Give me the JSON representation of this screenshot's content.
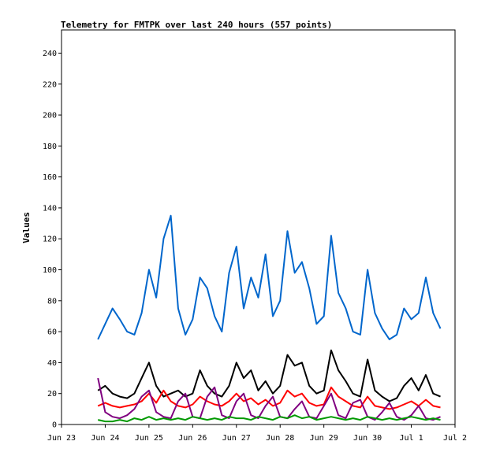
{
  "chart_data": {
    "type": "line",
    "title": "Telemetry for FMTPK over last 240 hours (557 points)",
    "xlabel": "",
    "ylabel": "Values",
    "xlim": [
      "2023-06-23",
      "2023-07-02"
    ],
    "ylim": [
      0,
      255
    ],
    "grid": false,
    "x_ticks": [
      {
        "date": "2023-06-23",
        "label": "Jun 23"
      },
      {
        "date": "2023-06-24",
        "label": "Jun 24"
      },
      {
        "date": "2023-06-25",
        "label": "Jun 25"
      },
      {
        "date": "2023-06-26",
        "label": "Jun 26"
      },
      {
        "date": "2023-06-27",
        "label": "Jun 27"
      },
      {
        "date": "2023-06-28",
        "label": "Jun 28"
      },
      {
        "date": "2023-06-29",
        "label": "Jun 29"
      },
      {
        "date": "2023-06-30",
        "label": "Jun 30"
      },
      {
        "date": "2023-07-01",
        "label": "Jul 1"
      },
      {
        "date": "2023-07-02",
        "label": "Jul 2"
      }
    ],
    "y_ticks": [
      0,
      20,
      40,
      60,
      80,
      100,
      120,
      140,
      160,
      180,
      200,
      220,
      240
    ],
    "series": [
      {
        "color": "#0066cc",
        "x": [
          "2023-06-23T20:00",
          "2023-06-24T00:00",
          "2023-06-24T04:00",
          "2023-06-24T08:00",
          "2023-06-24T12:00",
          "2023-06-24T16:00",
          "2023-06-24T20:00",
          "2023-06-25T00:00",
          "2023-06-25T04:00",
          "2023-06-25T08:00",
          "2023-06-25T12:00",
          "2023-06-25T16:00",
          "2023-06-25T20:00",
          "2023-06-26T00:00",
          "2023-06-26T04:00",
          "2023-06-26T08:00",
          "2023-06-26T12:00",
          "2023-06-26T16:00",
          "2023-06-26T20:00",
          "2023-06-27T00:00",
          "2023-06-27T04:00",
          "2023-06-27T08:00",
          "2023-06-27T12:00",
          "2023-06-27T16:00",
          "2023-06-27T20:00",
          "2023-06-28T00:00",
          "2023-06-28T04:00",
          "2023-06-28T08:00",
          "2023-06-28T12:00",
          "2023-06-28T16:00",
          "2023-06-28T20:00",
          "2023-06-29T00:00",
          "2023-06-29T04:00",
          "2023-06-29T08:00",
          "2023-06-29T12:00",
          "2023-06-29T16:00",
          "2023-06-29T20:00",
          "2023-06-30T00:00",
          "2023-06-30T04:00",
          "2023-06-30T08:00",
          "2023-06-30T12:00",
          "2023-06-30T16:00",
          "2023-06-30T20:00",
          "2023-07-01T00:00",
          "2023-07-01T04:00",
          "2023-07-01T08:00",
          "2023-07-01T12:00",
          "2023-07-01T16:00"
        ],
        "values": [
          55,
          65,
          75,
          68,
          60,
          58,
          72,
          100,
          82,
          120,
          135,
          75,
          58,
          68,
          95,
          88,
          70,
          60,
          98,
          115,
          75,
          95,
          82,
          110,
          70,
          80,
          125,
          98,
          105,
          88,
          65,
          70,
          122,
          85,
          75,
          60,
          58,
          100,
          72,
          62,
          55,
          58,
          75,
          68,
          72,
          95,
          72,
          62
        ]
      },
      {
        "color": "#000000",
        "x": [
          "2023-06-23T20:00",
          "2023-06-24T00:00",
          "2023-06-24T04:00",
          "2023-06-24T08:00",
          "2023-06-24T12:00",
          "2023-06-24T16:00",
          "2023-06-24T20:00",
          "2023-06-25T00:00",
          "2023-06-25T04:00",
          "2023-06-25T08:00",
          "2023-06-25T12:00",
          "2023-06-25T16:00",
          "2023-06-25T20:00",
          "2023-06-26T00:00",
          "2023-06-26T04:00",
          "2023-06-26T08:00",
          "2023-06-26T12:00",
          "2023-06-26T16:00",
          "2023-06-26T20:00",
          "2023-06-27T00:00",
          "2023-06-27T04:00",
          "2023-06-27T08:00",
          "2023-06-27T12:00",
          "2023-06-27T16:00",
          "2023-06-27T20:00",
          "2023-06-28T00:00",
          "2023-06-28T04:00",
          "2023-06-28T08:00",
          "2023-06-28T12:00",
          "2023-06-28T16:00",
          "2023-06-28T20:00",
          "2023-06-29T00:00",
          "2023-06-29T04:00",
          "2023-06-29T08:00",
          "2023-06-29T12:00",
          "2023-06-29T16:00",
          "2023-06-29T20:00",
          "2023-06-30T00:00",
          "2023-06-30T04:00",
          "2023-06-30T08:00",
          "2023-06-30T12:00",
          "2023-06-30T16:00",
          "2023-06-30T20:00",
          "2023-07-01T00:00",
          "2023-07-01T04:00",
          "2023-07-01T08:00",
          "2023-07-01T12:00",
          "2023-07-01T16:00"
        ],
        "values": [
          22,
          25,
          20,
          18,
          17,
          20,
          30,
          40,
          25,
          18,
          20,
          22,
          18,
          20,
          35,
          25,
          20,
          18,
          25,
          40,
          30,
          35,
          22,
          28,
          20,
          25,
          45,
          38,
          40,
          25,
          20,
          22,
          48,
          35,
          28,
          20,
          18,
          42,
          22,
          18,
          15,
          17,
          25,
          30,
          22,
          32,
          20,
          18
        ]
      },
      {
        "color": "#ff0000",
        "x": [
          "2023-06-23T20:00",
          "2023-06-24T00:00",
          "2023-06-24T04:00",
          "2023-06-24T08:00",
          "2023-06-24T12:00",
          "2023-06-24T16:00",
          "2023-06-24T20:00",
          "2023-06-25T00:00",
          "2023-06-25T04:00",
          "2023-06-25T08:00",
          "2023-06-25T12:00",
          "2023-06-25T16:00",
          "2023-06-25T20:00",
          "2023-06-26T00:00",
          "2023-06-26T04:00",
          "2023-06-26T08:00",
          "2023-06-26T12:00",
          "2023-06-26T16:00",
          "2023-06-26T20:00",
          "2023-06-27T00:00",
          "2023-06-27T04:00",
          "2023-06-27T08:00",
          "2023-06-27T12:00",
          "2023-06-27T16:00",
          "2023-06-27T20:00",
          "2023-06-28T00:00",
          "2023-06-28T04:00",
          "2023-06-28T08:00",
          "2023-06-28T12:00",
          "2023-06-28T16:00",
          "2023-06-28T20:00",
          "2023-06-29T00:00",
          "2023-06-29T04:00",
          "2023-06-29T08:00",
          "2023-06-29T12:00",
          "2023-06-29T16:00",
          "2023-06-29T20:00",
          "2023-06-30T00:00",
          "2023-06-30T04:00",
          "2023-06-30T08:00",
          "2023-06-30T12:00",
          "2023-06-30T16:00",
          "2023-06-30T20:00",
          "2023-07-01T00:00",
          "2023-07-01T04:00",
          "2023-07-01T08:00",
          "2023-07-01T12:00",
          "2023-07-01T16:00"
        ],
        "values": [
          12,
          14,
          12,
          11,
          12,
          13,
          15,
          20,
          14,
          22,
          15,
          12,
          11,
          13,
          18,
          15,
          13,
          12,
          15,
          20,
          15,
          17,
          13,
          16,
          12,
          14,
          22,
          18,
          20,
          14,
          12,
          13,
          24,
          18,
          15,
          12,
          11,
          18,
          12,
          11,
          10,
          11,
          13,
          15,
          12,
          16,
          12,
          11
        ]
      },
      {
        "color": "#800080",
        "x": [
          "2023-06-23T20:00",
          "2023-06-24T00:00",
          "2023-06-24T04:00",
          "2023-06-24T08:00",
          "2023-06-24T12:00",
          "2023-06-24T16:00",
          "2023-06-24T20:00",
          "2023-06-25T00:00",
          "2023-06-25T04:00",
          "2023-06-25T08:00",
          "2023-06-25T12:00",
          "2023-06-25T16:00",
          "2023-06-25T20:00",
          "2023-06-26T00:00",
          "2023-06-26T04:00",
          "2023-06-26T08:00",
          "2023-06-26T12:00",
          "2023-06-26T16:00",
          "2023-06-26T20:00",
          "2023-06-27T00:00",
          "2023-06-27T04:00",
          "2023-06-27T08:00",
          "2023-06-27T12:00",
          "2023-06-27T16:00",
          "2023-06-27T20:00",
          "2023-06-28T00:00",
          "2023-06-28T04:00",
          "2023-06-28T08:00",
          "2023-06-28T12:00",
          "2023-06-28T16:00",
          "2023-06-28T20:00",
          "2023-06-29T00:00",
          "2023-06-29T04:00",
          "2023-06-29T08:00",
          "2023-06-29T12:00",
          "2023-06-29T16:00",
          "2023-06-29T20:00",
          "2023-06-30T00:00",
          "2023-06-30T04:00",
          "2023-06-30T08:00",
          "2023-06-30T12:00",
          "2023-06-30T16:00",
          "2023-06-30T20:00",
          "2023-07-01T00:00",
          "2023-07-01T04:00",
          "2023-07-01T08:00",
          "2023-07-01T12:00",
          "2023-07-01T16:00"
        ],
        "values": [
          30,
          8,
          5,
          4,
          6,
          10,
          18,
          22,
          8,
          5,
          4,
          15,
          20,
          5,
          4,
          18,
          24,
          6,
          4,
          15,
          20,
          6,
          4,
          12,
          18,
          5,
          4,
          10,
          15,
          5,
          4,
          12,
          20,
          6,
          4,
          14,
          16,
          5,
          3,
          8,
          14,
          5,
          3,
          6,
          12,
          4,
          3,
          5
        ]
      },
      {
        "color": "#009900",
        "x": [
          "2023-06-23T20:00",
          "2023-06-24T00:00",
          "2023-06-24T04:00",
          "2023-06-24T08:00",
          "2023-06-24T12:00",
          "2023-06-24T16:00",
          "2023-06-24T20:00",
          "2023-06-25T00:00",
          "2023-06-25T04:00",
          "2023-06-25T08:00",
          "2023-06-25T12:00",
          "2023-06-25T16:00",
          "2023-06-25T20:00",
          "2023-06-26T00:00",
          "2023-06-26T04:00",
          "2023-06-26T08:00",
          "2023-06-26T12:00",
          "2023-06-26T16:00",
          "2023-06-26T20:00",
          "2023-06-27T00:00",
          "2023-06-27T04:00",
          "2023-06-27T08:00",
          "2023-06-27T12:00",
          "2023-06-27T16:00",
          "2023-06-27T20:00",
          "2023-06-28T00:00",
          "2023-06-28T04:00",
          "2023-06-28T08:00",
          "2023-06-28T12:00",
          "2023-06-28T16:00",
          "2023-06-28T20:00",
          "2023-06-29T00:00",
          "2023-06-29T04:00",
          "2023-06-29T08:00",
          "2023-06-29T12:00",
          "2023-06-29T16:00",
          "2023-06-29T20:00",
          "2023-06-30T00:00",
          "2023-06-30T04:00",
          "2023-06-30T08:00",
          "2023-06-30T12:00",
          "2023-06-30T16:00",
          "2023-06-30T20:00",
          "2023-07-01T00:00",
          "2023-07-01T04:00",
          "2023-07-01T08:00",
          "2023-07-01T12:00",
          "2023-07-01T16:00"
        ],
        "values": [
          3,
          2,
          2,
          3,
          2,
          4,
          3,
          5,
          3,
          4,
          3,
          4,
          3,
          5,
          4,
          3,
          4,
          3,
          5,
          4,
          4,
          3,
          5,
          4,
          3,
          5,
          4,
          6,
          4,
          5,
          3,
          4,
          5,
          4,
          3,
          4,
          3,
          5,
          4,
          3,
          4,
          3,
          4,
          5,
          4,
          3,
          4,
          3
        ]
      }
    ]
  }
}
